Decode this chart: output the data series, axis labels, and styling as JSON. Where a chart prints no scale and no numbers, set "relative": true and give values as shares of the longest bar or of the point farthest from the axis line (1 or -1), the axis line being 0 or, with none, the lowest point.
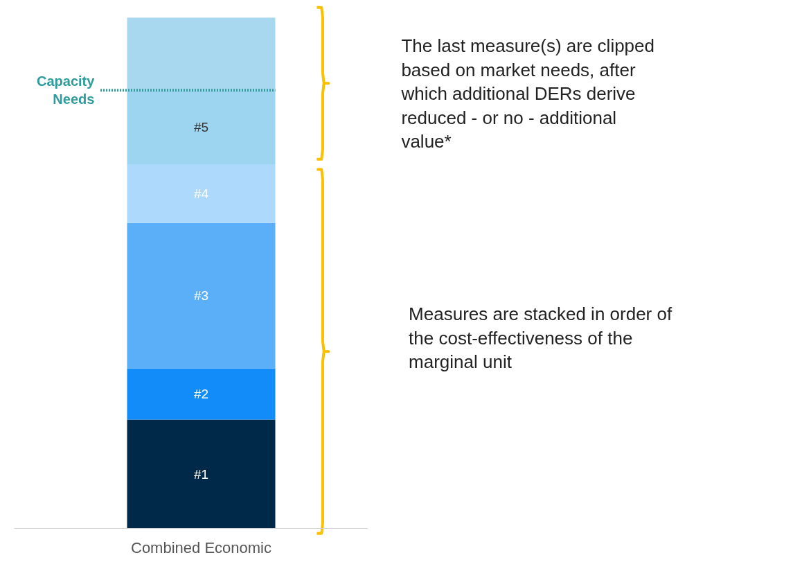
{
  "chart_data": {
    "type": "bar",
    "stacked": true,
    "relative": true,
    "categories": [
      null
    ],
    "xlabel": "Combined Economic",
    "series": [
      {
        "name": "#1",
        "color": "#002849",
        "values": [
          0.213
        ]
      },
      {
        "name": "#2",
        "color": "#118cf9",
        "values": [
          0.1
        ]
      },
      {
        "name": "#3",
        "color": "#5aaff8",
        "values": [
          0.285
        ]
      },
      {
        "name": "#4",
        "color": "#acd9fc",
        "values": [
          0.115
        ]
      },
      {
        "name": "#5",
        "color": "#9dd5f1",
        "values": [
          0.144
        ]
      },
      {
        "color": "#a8d8f0",
        "values": [
          0.143
        ]
      }
    ],
    "ref_lines": [
      {
        "axis": "y",
        "value": 0.858,
        "label": "Capacity Needs",
        "color": "#2e9c9c",
        "line_style": "dotted"
      }
    ],
    "annotations": [
      "The last measure(s) are clipped based on market needs, after which additional DERs derive reduced - or no - additional value*",
      "Measures are stacked in order of the cost-effectiveness of the marginal unit"
    ],
    "grid": false,
    "legend": false
  }
}
